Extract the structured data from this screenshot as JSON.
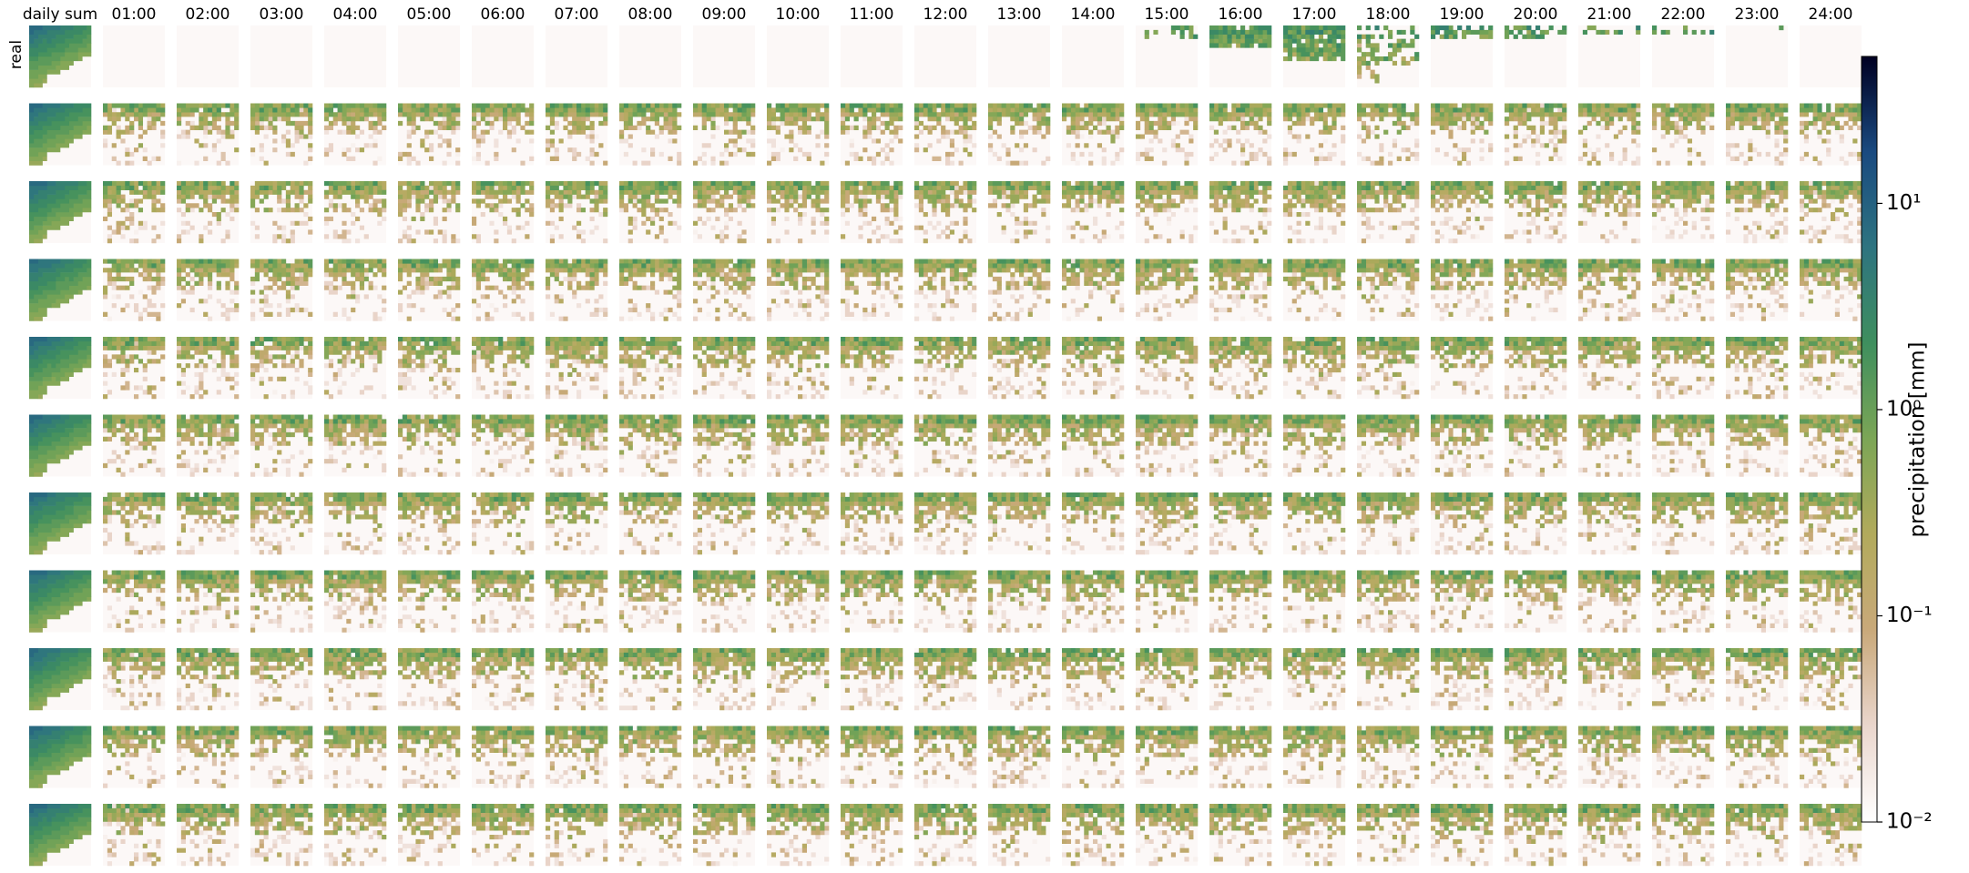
{
  "chart_data": {
    "type": "heatmap-grid",
    "columns": [
      "daily sum",
      "01:00",
      "02:00",
      "03:00",
      "04:00",
      "05:00",
      "06:00",
      "07:00",
      "08:00",
      "09:00",
      "10:00",
      "11:00",
      "12:00",
      "13:00",
      "14:00",
      "15:00",
      "16:00",
      "17:00",
      "18:00",
      "19:00",
      "20:00",
      "21:00",
      "22:00",
      "23:00",
      "24:00"
    ],
    "rows": [
      "real",
      null,
      null,
      null,
      null,
      null,
      null,
      null,
      null,
      null,
      null
    ],
    "colorbar": {
      "label": "precipitation [mm]",
      "scale": "log",
      "lim": [
        0.01,
        51.6
      ],
      "ticks": [
        {
          "value": 0.01,
          "label": "10⁻²"
        },
        {
          "value": 0.1,
          "label": "10⁻¹"
        },
        {
          "value": 1,
          "label": "10⁰"
        },
        {
          "value": 10,
          "label": "10¹"
        }
      ],
      "colors": [
        "#ffffff",
        "#ead6cd",
        "#c9a97a",
        "#b2aa5c",
        "#7ca656",
        "#3f8f5e",
        "#2e7480",
        "#1a4a80",
        "#000022"
      ]
    }
  }
}
